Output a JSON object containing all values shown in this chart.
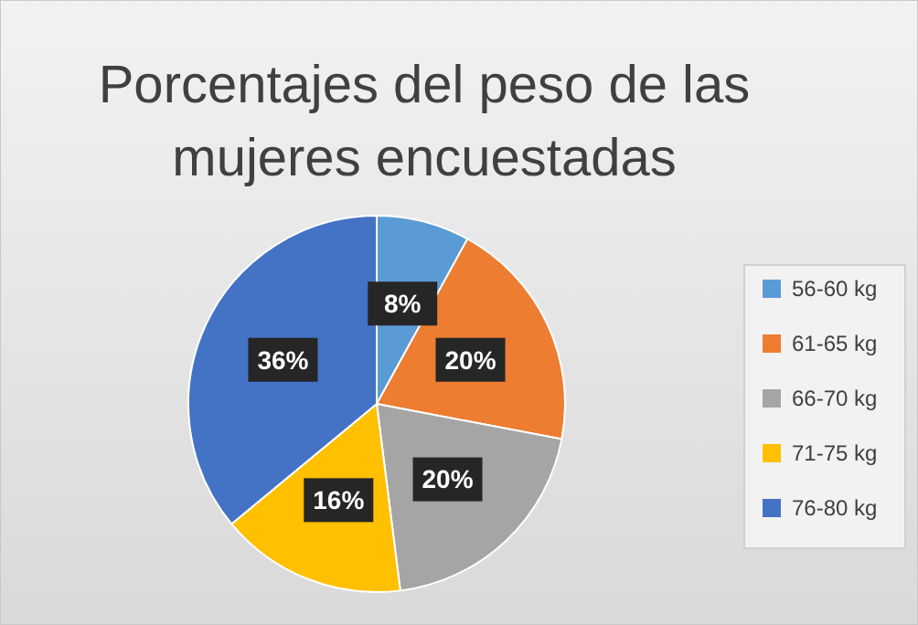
{
  "chart_data": {
    "type": "pie",
    "title": "Porcentajes del peso de las mujeres encuestadas",
    "categories": [
      "56-60 kg",
      "61-65 kg",
      "66-70 kg",
      "71-75 kg",
      "76-80 kg"
    ],
    "values": [
      8,
      20,
      20,
      16,
      36
    ],
    "colors": [
      "#5b9bd5",
      "#ed7d31",
      "#a5a5a5",
      "#ffc000",
      "#4472c4"
    ],
    "value_labels": [
      "8%",
      "20%",
      "20%",
      "16%",
      "36%"
    ],
    "legend": "right"
  }
}
